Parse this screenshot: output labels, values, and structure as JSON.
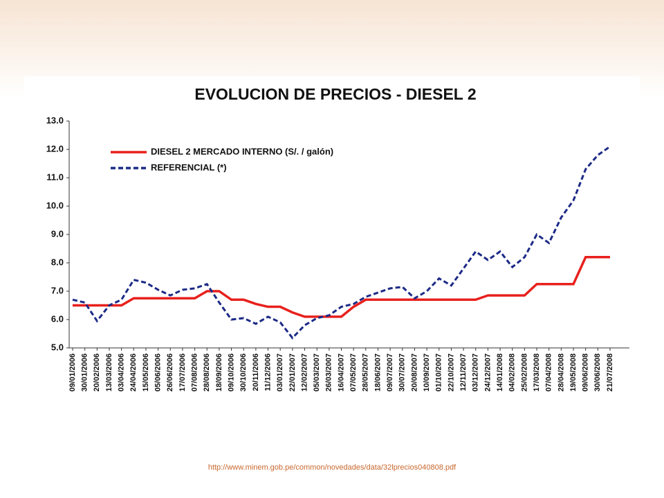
{
  "chart_data": {
    "type": "line",
    "title": "EVOLUCION DE PRECIOS - DIESEL 2",
    "categories": [
      "09/01/2006",
      "30/01/2006",
      "20/02/2006",
      "13/03/2006",
      "03/04/2006",
      "24/04/2006",
      "15/05/2006",
      "05/06/2006",
      "26/06/2006",
      "17/07/2006",
      "07/08/2006",
      "28/08/2006",
      "18/09/2006",
      "09/10/2006",
      "30/10/2006",
      "20/11/2006",
      "11/12/2006",
      "03/01/2007",
      "22/01/2007",
      "12/02/2007",
      "05/03/2007",
      "26/03/2007",
      "16/04/2007",
      "07/05/2007",
      "28/05/2007",
      "18/06/2007",
      "09/07/2007",
      "30/07/2007",
      "20/08/2007",
      "10/09/2007",
      "01/10/2007",
      "22/10/2007",
      "12/11/2007",
      "03/12/2007",
      "24/12/2007",
      "14/01/2008",
      "04/02/2008",
      "25/02/2008",
      "17/03/2008",
      "07/04/2008",
      "28/04/2008",
      "19/05/2008",
      "09/06/2008",
      "30/06/2008",
      "21/07/2008"
    ],
    "series": [
      {
        "name": "DIESEL 2 MERCADO INTERNO (S/. / galón)",
        "color": "#e8201c",
        "dash": false,
        "values": [
          6.5,
          6.5,
          6.5,
          6.5,
          6.5,
          6.75,
          6.75,
          6.75,
          6.75,
          6.75,
          6.75,
          7.0,
          7.0,
          6.7,
          6.7,
          6.55,
          6.45,
          6.45,
          6.25,
          6.1,
          6.1,
          6.1,
          6.1,
          6.45,
          6.7,
          6.7,
          6.7,
          6.7,
          6.7,
          6.7,
          6.7,
          6.7,
          6.7,
          6.7,
          6.85,
          6.85,
          6.85,
          6.85,
          7.25,
          7.25,
          7.25,
          7.25,
          8.2,
          8.2,
          8.2
        ]
      },
      {
        "name": "REFERENCIAL (*)",
        "color": "#1c2a86",
        "dash": true,
        "values": [
          6.7,
          6.6,
          5.95,
          6.5,
          6.7,
          7.4,
          7.3,
          7.05,
          6.85,
          7.05,
          7.1,
          7.25,
          6.6,
          6.0,
          6.05,
          5.85,
          6.1,
          5.9,
          5.35,
          5.8,
          6.05,
          6.15,
          6.45,
          6.55,
          6.8,
          6.95,
          7.1,
          7.15,
          6.75,
          7.0,
          7.45,
          7.2,
          7.8,
          8.4,
          8.1,
          8.4,
          7.85,
          8.2,
          9.0,
          8.7,
          9.6,
          10.2,
          11.3,
          11.8,
          12.1
        ]
      }
    ],
    "ylim": [
      5,
      13
    ],
    "yticks": [
      {
        "value": 5,
        "label": "5.0"
      },
      {
        "value": 6,
        "label": "6.0"
      },
      {
        "value": 7,
        "label": "7.0"
      },
      {
        "value": 8,
        "label": "8.0"
      },
      {
        "value": 9,
        "label": "9.0"
      },
      {
        "value": 10,
        "label": "10.0"
      },
      {
        "value": 11,
        "label": "11.0"
      },
      {
        "value": 12,
        "label": "12.0"
      },
      {
        "value": 13,
        "label": "13.0"
      }
    ],
    "grid": false,
    "legend": "upper-left"
  },
  "footer": {
    "source": "http://www.minem.gob.pe/common/novedades/data/32lprecios040808.pdf"
  }
}
